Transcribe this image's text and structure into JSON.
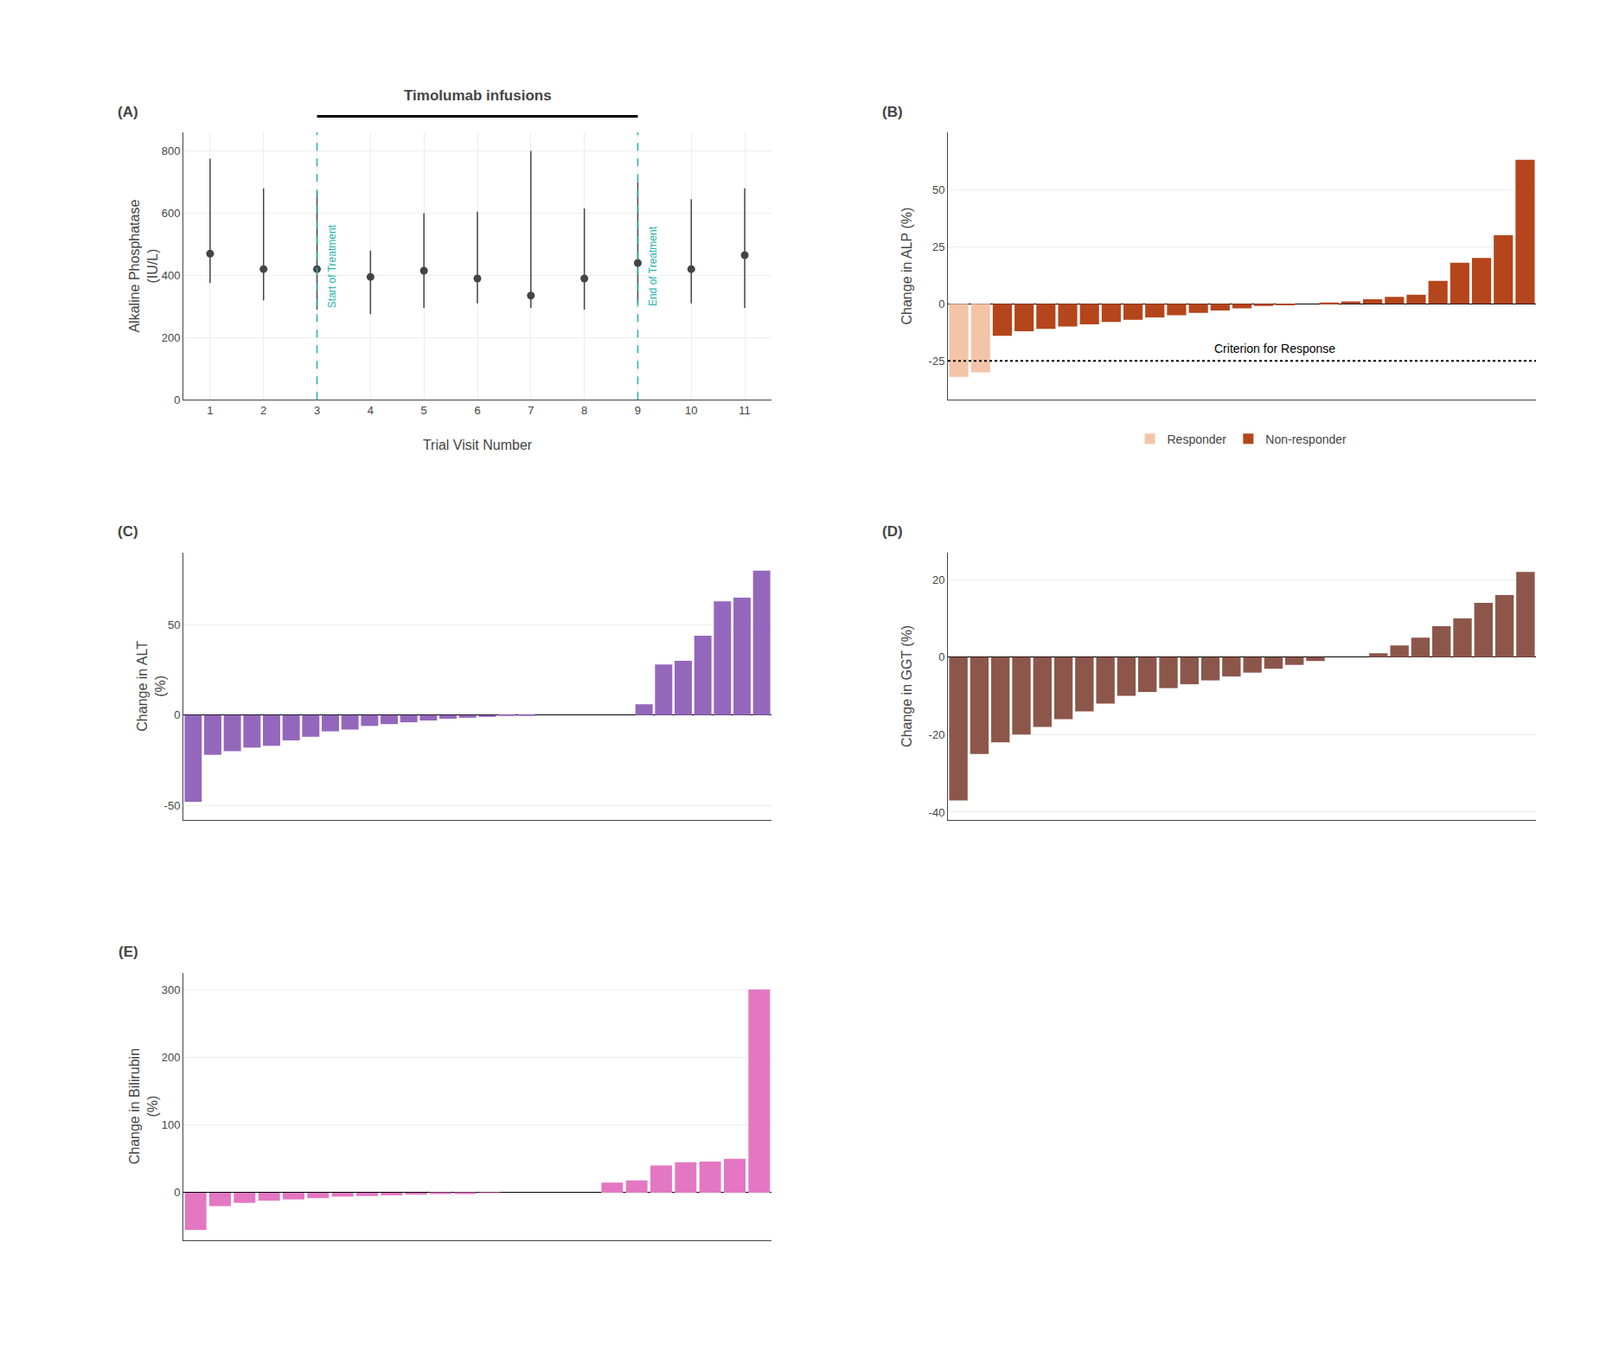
{
  "chart_data": [
    {
      "type": "scatter",
      "title": "Timolumab infusions",
      "x": [
        1,
        2,
        3,
        4,
        5,
        6,
        7,
        8,
        9,
        10,
        11
      ],
      "values": [
        470,
        420,
        420,
        395,
        415,
        390,
        335,
        390,
        440,
        420,
        465
      ],
      "lower": [
        375,
        320,
        290,
        275,
        295,
        310,
        295,
        290,
        310,
        310,
        295
      ],
      "upper": [
        775,
        680,
        670,
        480,
        600,
        605,
        800,
        615,
        700,
        645,
        680
      ],
      "marker": "circle",
      "xlabel": "Trial Visit Number",
      "ylabel": "Alkaline Phosphatase\n(IU/L)",
      "xlim": [
        0.5,
        11.5
      ],
      "xticks": [
        1,
        2,
        3,
        4,
        5,
        6,
        7,
        8,
        9,
        10,
        11
      ],
      "ylim": [
        0,
        860
      ],
      "yticks": [
        0,
        200,
        400,
        600,
        800
      ],
      "grid": true,
      "vlines": [
        {
          "x": 3.0,
          "label": "Start of Treatment",
          "color": "#20b2aa",
          "line_style": "dashed"
        },
        {
          "x": 9.0,
          "label": "End of Treatment",
          "color": "#20b2aa",
          "line_style": "dashed"
        }
      ],
      "annotations": [
        "(A)"
      ]
    },
    {
      "type": "bar",
      "categories": [
        null,
        null,
        null,
        null,
        null,
        null,
        null,
        null,
        null,
        null,
        null,
        null,
        null,
        null,
        null,
        null,
        null,
        null,
        null,
        null,
        null,
        null,
        null,
        null,
        null,
        null,
        null
      ],
      "series": [
        {
          "name": "Responder",
          "color": "#f4c4a8",
          "values": [
            -32,
            -30,
            null,
            null,
            null,
            null,
            null,
            null,
            null,
            null,
            null,
            null,
            null,
            null,
            null,
            null,
            null,
            null,
            null,
            null,
            null,
            null,
            null,
            null,
            null,
            null,
            null
          ]
        },
        {
          "name": "Non-responder",
          "color": "#b5451b",
          "values": [
            null,
            null,
            -14,
            -12,
            -11,
            -10,
            -9,
            -8,
            -7,
            -6,
            -5,
            -4,
            -3,
            -2,
            -1,
            -0.5,
            0,
            0.5,
            1,
            2,
            3,
            4,
            10,
            18,
            20,
            30,
            63
          ]
        }
      ],
      "ylabel": "Change in ALP (%)",
      "ylim": [
        -42,
        75
      ],
      "yticks": [
        -25,
        0,
        25,
        50
      ],
      "grid": true,
      "legend": "bottom",
      "tick_labels": "y",
      "hlines": [
        {
          "y": -25,
          "label": "Criterion for Response",
          "line_style": "dotted"
        }
      ],
      "annotations": [
        "(B)"
      ]
    },
    {
      "type": "bar",
      "categories": [
        null,
        null,
        null,
        null,
        null,
        null,
        null,
        null,
        null,
        null,
        null,
        null,
        null,
        null,
        null,
        null,
        null,
        null,
        null,
        null,
        null,
        null,
        null,
        null,
        null,
        null,
        null,
        null,
        null,
        null
      ],
      "values": [
        -48,
        -22,
        -20,
        -18,
        -17,
        -14,
        -12,
        -9,
        -8,
        -6,
        -5,
        -4,
        -3,
        -2,
        -1.5,
        -1,
        -0.5,
        -0.2,
        0,
        0,
        0,
        0,
        0,
        6,
        28,
        30,
        44,
        63,
        65,
        80
      ],
      "ylabel": "Change in ALT\n(%)",
      "ylim": [
        -58,
        90
      ],
      "yticks": [
        -50,
        0,
        50
      ],
      "grid": true,
      "tick_labels": "y",
      "annotations": [
        "(C)"
      ]
    },
    {
      "type": "bar",
      "categories": [
        null,
        null,
        null,
        null,
        null,
        null,
        null,
        null,
        null,
        null,
        null,
        null,
        null,
        null,
        null,
        null,
        null,
        null,
        null,
        null,
        null,
        null,
        null,
        null,
        null,
        null,
        null,
        null
      ],
      "values": [
        -37,
        -25,
        -22,
        -20,
        -18,
        -16,
        -14,
        -12,
        -10,
        -9,
        -8,
        -7,
        -6,
        -5,
        -4,
        -3,
        -2,
        -1,
        0,
        0,
        1,
        3,
        5,
        8,
        10,
        14,
        16,
        22
      ],
      "ylabel": "Change in GGT (%)",
      "ylim": [
        -42,
        27
      ],
      "yticks": [
        -40,
        -20,
        0,
        20
      ],
      "grid": true,
      "tick_labels": "y",
      "annotations": [
        "(D)"
      ]
    },
    {
      "type": "bar",
      "categories": [
        null,
        null,
        null,
        null,
        null,
        null,
        null,
        null,
        null,
        null,
        null,
        null,
        null,
        null,
        null,
        null,
        null,
        null,
        null,
        null,
        null,
        null,
        null,
        null
      ],
      "values": [
        -55,
        -20,
        -15,
        -12,
        -10,
        -8,
        -6,
        -5,
        -4,
        -3,
        -2,
        -1,
        -0.5,
        0,
        0,
        0,
        0,
        15,
        18,
        40,
        45,
        46,
        50,
        300
      ],
      "ylabel": "Change in Bilirubin\n(%)",
      "ylim": [
        -70,
        325
      ],
      "yticks": [
        0,
        100,
        200,
        300
      ],
      "grid": true,
      "tick_labels": "y",
      "annotations": [
        "(E)"
      ]
    }
  ]
}
